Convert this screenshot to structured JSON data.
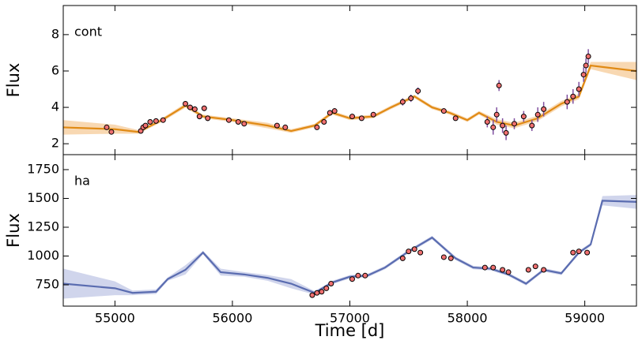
{
  "chart_data": [
    {
      "type": "line",
      "annotation": "cont",
      "ylabel": "Flux",
      "xlim": [
        54560,
        59440
      ],
      "ylim": [
        1.4,
        9.6
      ],
      "xticks": [
        55000,
        56000,
        57000,
        58000,
        59000
      ],
      "yticks": [
        2,
        4,
        6,
        8
      ],
      "series": [
        {
          "type": "line",
          "color": "#e08a14",
          "band_color": "#f2b872",
          "x": [
            54560,
            55000,
            55200,
            55400,
            55600,
            55750,
            56000,
            56300,
            56500,
            56700,
            56850,
            57000,
            57200,
            57350,
            57550,
            57700,
            57850,
            58000,
            58100,
            58250,
            58400,
            58600,
            58800,
            58950,
            59050,
            59440
          ],
          "values": [
            2.9,
            2.8,
            2.65,
            3.3,
            4.1,
            3.5,
            3.3,
            3.0,
            2.7,
            3.0,
            3.7,
            3.4,
            3.5,
            4.0,
            4.6,
            4.0,
            3.7,
            3.3,
            3.7,
            3.2,
            3.0,
            3.4,
            4.2,
            4.6,
            6.3,
            6.0
          ],
          "lower": [
            2.5,
            2.55,
            2.55,
            3.2,
            3.98,
            3.4,
            3.2,
            2.85,
            2.6,
            2.9,
            3.6,
            3.3,
            3.4,
            3.9,
            4.5,
            3.9,
            3.6,
            3.2,
            3.6,
            3.05,
            2.85,
            3.25,
            4.05,
            4.45,
            6.1,
            5.5
          ],
          "upper": [
            3.3,
            3.05,
            2.75,
            3.4,
            4.22,
            3.6,
            3.4,
            3.15,
            2.8,
            3.1,
            3.8,
            3.5,
            3.6,
            4.1,
            4.7,
            4.1,
            3.8,
            3.4,
            3.8,
            3.35,
            3.15,
            3.55,
            4.35,
            4.75,
            6.5,
            6.5
          ]
        },
        {
          "type": "scatter",
          "color": "#f07070",
          "error_color": "#8050a0",
          "x": [
            54930,
            54970,
            55220,
            55240,
            55260,
            55300,
            55350,
            55410,
            55600,
            55640,
            55680,
            55720,
            55760,
            55790,
            55970,
            56050,
            56100,
            56380,
            56450,
            56720,
            56780,
            56830,
            56870,
            57020,
            57100,
            57200,
            57450,
            57520,
            57580,
            57800,
            57900,
            58170,
            58220,
            58250,
            58270,
            58300,
            58330,
            58400,
            58480,
            58550,
            58600,
            58650,
            58850,
            58900,
            58950,
            58990,
            59010,
            59030
          ],
          "values": [
            2.9,
            2.65,
            2.7,
            2.9,
            3.0,
            3.2,
            3.25,
            3.3,
            4.2,
            4.0,
            3.9,
            3.5,
            3.95,
            3.4,
            3.3,
            3.2,
            3.1,
            3.0,
            2.9,
            2.9,
            3.2,
            3.7,
            3.8,
            3.5,
            3.4,
            3.6,
            4.3,
            4.5,
            4.9,
            3.8,
            3.4,
            3.2,
            2.9,
            3.6,
            5.2,
            3.0,
            2.6,
            3.1,
            3.5,
            3.0,
            3.6,
            3.9,
            4.3,
            4.6,
            5.0,
            5.8,
            6.3,
            6.8
          ],
          "errors": [
            0.1,
            0.1,
            0.1,
            0.1,
            0.1,
            0.1,
            0.1,
            0.1,
            0.15,
            0.15,
            0.15,
            0.15,
            0.15,
            0.15,
            0.1,
            0.1,
            0.1,
            0.1,
            0.1,
            0.1,
            0.1,
            0.15,
            0.15,
            0.1,
            0.1,
            0.1,
            0.2,
            0.2,
            0.2,
            0.1,
            0.1,
            0.3,
            0.4,
            0.4,
            0.3,
            0.4,
            0.4,
            0.3,
            0.3,
            0.3,
            0.4,
            0.4,
            0.4,
            0.4,
            0.4,
            0.4,
            0.4,
            0.4
          ]
        }
      ]
    },
    {
      "type": "line",
      "annotation": "ha",
      "ylabel": "Flux",
      "xlabel": "Time [d]",
      "xlim": [
        54560,
        59440
      ],
      "ylim": [
        565,
        1880
      ],
      "xticks": [
        55000,
        56000,
        57000,
        58000,
        59000
      ],
      "yticks": [
        750,
        1000,
        1250,
        1500,
        1750
      ],
      "series": [
        {
          "type": "line",
          "color": "#5a6cb0",
          "band_color": "#aab3dc",
          "x": [
            54560,
            55000,
            55150,
            55350,
            55450,
            55600,
            55750,
            55900,
            56100,
            56300,
            56500,
            56700,
            56850,
            57000,
            57150,
            57300,
            57500,
            57700,
            57900,
            58050,
            58200,
            58350,
            58500,
            58650,
            58800,
            58950,
            59050,
            59150,
            59440
          ],
          "values": [
            760,
            720,
            680,
            690,
            800,
            880,
            1030,
            860,
            840,
            810,
            760,
            680,
            770,
            820,
            830,
            900,
            1040,
            1160,
            980,
            900,
            890,
            840,
            760,
            880,
            850,
            1030,
            1100,
            1480,
            1470
          ],
          "lower": [
            630,
            660,
            660,
            670,
            785,
            840,
            1015,
            830,
            820,
            785,
            720,
            665,
            755,
            805,
            815,
            885,
            1025,
            1145,
            965,
            885,
            875,
            825,
            745,
            865,
            835,
            1015,
            1085,
            1440,
            1410
          ],
          "upper": [
            890,
            780,
            700,
            710,
            815,
            920,
            1045,
            890,
            860,
            835,
            800,
            695,
            785,
            835,
            845,
            915,
            1055,
            1175,
            995,
            915,
            905,
            855,
            775,
            895,
            865,
            1045,
            1115,
            1520,
            1530
          ]
        },
        {
          "type": "scatter",
          "color": "#f07070",
          "x": [
            56680,
            56720,
            56760,
            56800,
            56840,
            57020,
            57070,
            57130,
            57450,
            57500,
            57550,
            57600,
            57800,
            57860,
            58150,
            58220,
            58300,
            58350,
            58520,
            58580,
            58650,
            58900,
            58950,
            59020
          ],
          "values": [
            660,
            680,
            690,
            720,
            760,
            800,
            830,
            830,
            980,
            1040,
            1060,
            1030,
            990,
            980,
            900,
            900,
            880,
            860,
            880,
            910,
            880,
            1030,
            1040,
            1030
          ]
        }
      ]
    }
  ]
}
